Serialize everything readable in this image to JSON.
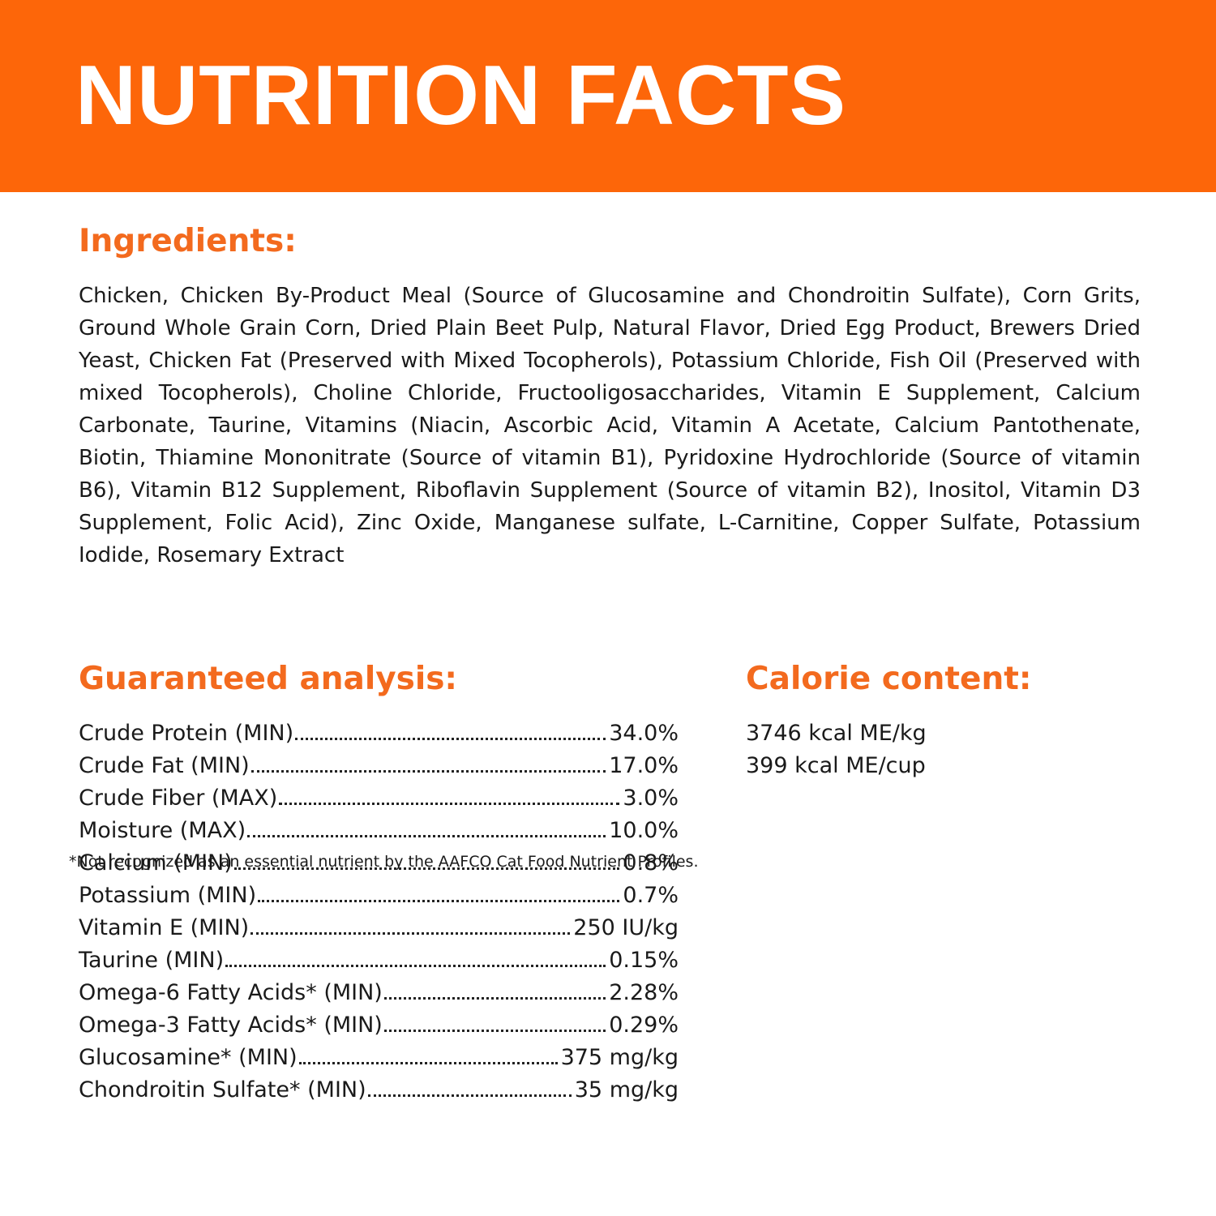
{
  "header": {
    "title": "NUTRITION FACTS"
  },
  "ingredients": {
    "heading": "Ingredients:",
    "text": "Chicken, Chicken By-Product Meal (Source of Glucosamine and Chondroitin Sulfate), Corn Grits, Ground Whole Grain Corn, Dried Plain Beet Pulp, Natural Flavor, Dried Egg Product, Brewers Dried Yeast, Chicken Fat (Preserved with Mixed Tocopherols), Potassium Chloride, Fish Oil (Preserved with mixed Tocopherols), Choline Chloride, Fructooligosaccharides, Vitamin E Supplement, Calcium Carbonate, Taurine, Vitamins (Niacin, Ascorbic Acid, Vitamin A Acetate, Calcium Pantothenate, Biotin, Thiamine Mononitrate (Source of vitamin B1), Pyridoxine Hydrochloride (Source of vitamin B6), Vitamin B12 Supplement, Riboflavin Supplement (Source of vitamin B2), Inositol, Vitamin D3 Supplement, Folic Acid), Zinc Oxide, Manganese sulfate, L-Carnitine, Copper Sulfate, Potassium Iodide, Rosemary Extract"
  },
  "guaranteed_analysis": {
    "heading": "Guaranteed analysis:",
    "rows": [
      [
        "Crude Protein (MIN)",
        "34.0%"
      ],
      [
        "Crude Fat (MIN)",
        "17.0%"
      ],
      [
        "Crude Fiber (MAX)",
        "3.0%"
      ],
      [
        "Moisture (MAX)",
        "10.0%"
      ],
      [
        "Calcium (MIN)",
        "0.8%"
      ],
      [
        "Potassium (MIN)",
        "0.7%"
      ],
      [
        "Vitamin E (MIN)",
        "250 IU/kg"
      ],
      [
        "Taurine (MIN)",
        "0.15%"
      ],
      [
        "Omega-6 Fatty Acids* (MIN)",
        "2.28%"
      ],
      [
        "Omega-3 Fatty Acids* (MIN)",
        "0.29%"
      ],
      [
        "Glucosamine* (MIN)",
        "375 mg/kg"
      ],
      [
        "Chondroitin Sulfate* (MIN)",
        "35 mg/kg"
      ]
    ]
  },
  "calorie_content": {
    "heading": "Calorie content:",
    "lines": [
      "3746 kcal ME/kg",
      "399 kcal ME/cup"
    ]
  },
  "footnote": "*Not recognized as an essential nutrient by the AAFCO Cat Food Nutrient Profiles."
}
